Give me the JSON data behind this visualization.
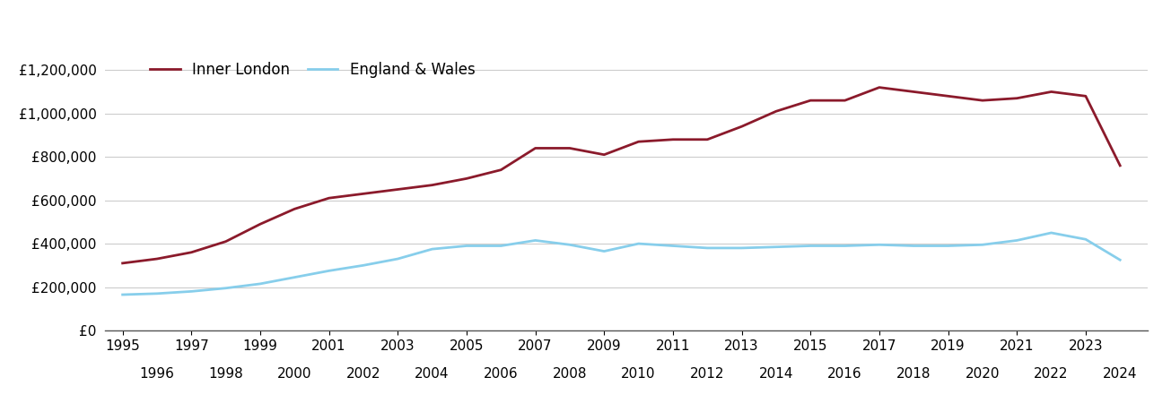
{
  "inner_london": {
    "years": [
      1995,
      1996,
      1997,
      1998,
      1999,
      2000,
      2001,
      2002,
      2003,
      2004,
      2005,
      2006,
      2007,
      2008,
      2009,
      2010,
      2011,
      2012,
      2013,
      2014,
      2015,
      2016,
      2017,
      2018,
      2019,
      2020,
      2021,
      2022,
      2023,
      2024
    ],
    "values": [
      310000,
      330000,
      360000,
      410000,
      490000,
      560000,
      610000,
      630000,
      650000,
      670000,
      700000,
      740000,
      840000,
      840000,
      810000,
      870000,
      880000,
      880000,
      940000,
      1010000,
      1060000,
      1060000,
      1120000,
      1100000,
      1080000,
      1060000,
      1070000,
      1100000,
      1080000,
      760000
    ]
  },
  "england_wales": {
    "years": [
      1995,
      1996,
      1997,
      1998,
      1999,
      2000,
      2001,
      2002,
      2003,
      2004,
      2005,
      2006,
      2007,
      2008,
      2009,
      2010,
      2011,
      2012,
      2013,
      2014,
      2015,
      2016,
      2017,
      2018,
      2019,
      2020,
      2021,
      2022,
      2023,
      2024
    ],
    "values": [
      165000,
      170000,
      180000,
      195000,
      215000,
      245000,
      275000,
      300000,
      330000,
      375000,
      390000,
      390000,
      415000,
      395000,
      365000,
      400000,
      390000,
      380000,
      380000,
      385000,
      390000,
      390000,
      395000,
      390000,
      390000,
      395000,
      415000,
      450000,
      420000,
      325000
    ]
  },
  "inner_london_color": "#8b1a2b",
  "england_wales_color": "#87ceeb",
  "inner_london_label": "Inner London",
  "england_wales_label": "England & Wales",
  "ylim": [
    0,
    1300000
  ],
  "yticks": [
    0,
    200000,
    400000,
    600000,
    800000,
    1000000,
    1200000
  ],
  "ytick_labels": [
    "£0",
    "£200,000",
    "£400,000",
    "£600,000",
    "£800,000",
    "£1,000,000",
    "£1,200,000"
  ],
  "xlim_min": 1994.5,
  "xlim_max": 2024.8,
  "xticks_row1": [
    1995,
    1997,
    1999,
    2001,
    2003,
    2005,
    2007,
    2009,
    2011,
    2013,
    2015,
    2017,
    2019,
    2021,
    2023
  ],
  "xticks_row2": [
    1996,
    1998,
    2000,
    2002,
    2004,
    2006,
    2008,
    2010,
    2012,
    2014,
    2016,
    2018,
    2020,
    2022,
    2024
  ],
  "background_color": "#ffffff",
  "grid_color": "#cccccc",
  "line_width": 2.0,
  "legend_fontsize": 12,
  "tick_fontsize": 11
}
